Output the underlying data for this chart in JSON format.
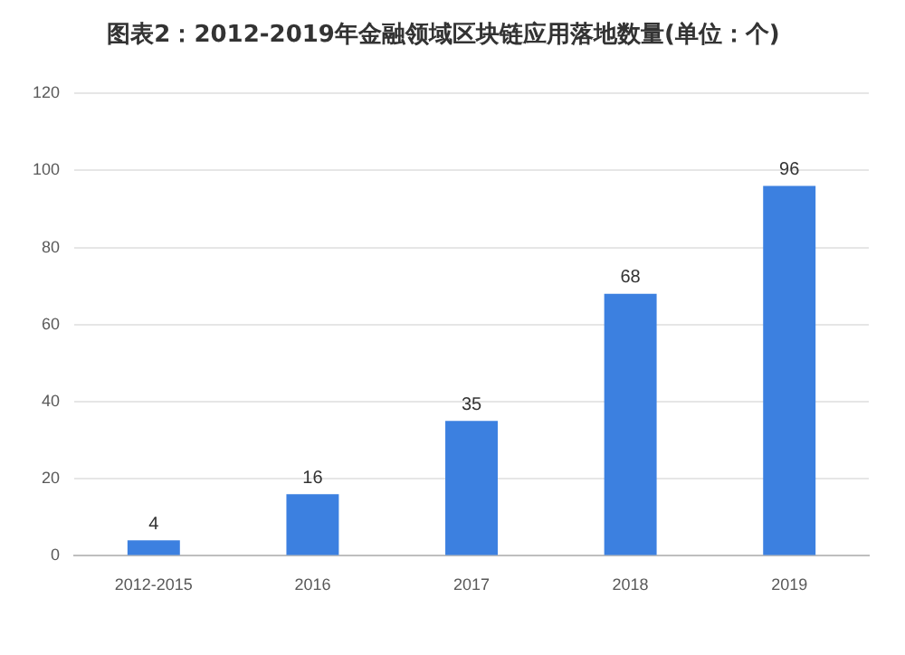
{
  "chart_data": {
    "type": "bar",
    "title": "图表2：2012-2019年金融领域区块链应用落地数量(单位：个)",
    "categories": [
      "2012-2015",
      "2016",
      "2017",
      "2018",
      "2019"
    ],
    "values": [
      4,
      16,
      35,
      68,
      96
    ],
    "color": "#3c80e0",
    "ylim": [
      0,
      120
    ],
    "yticks": [
      0,
      20,
      40,
      60,
      80,
      100,
      120
    ],
    "grid": "y",
    "data_labels": true
  }
}
